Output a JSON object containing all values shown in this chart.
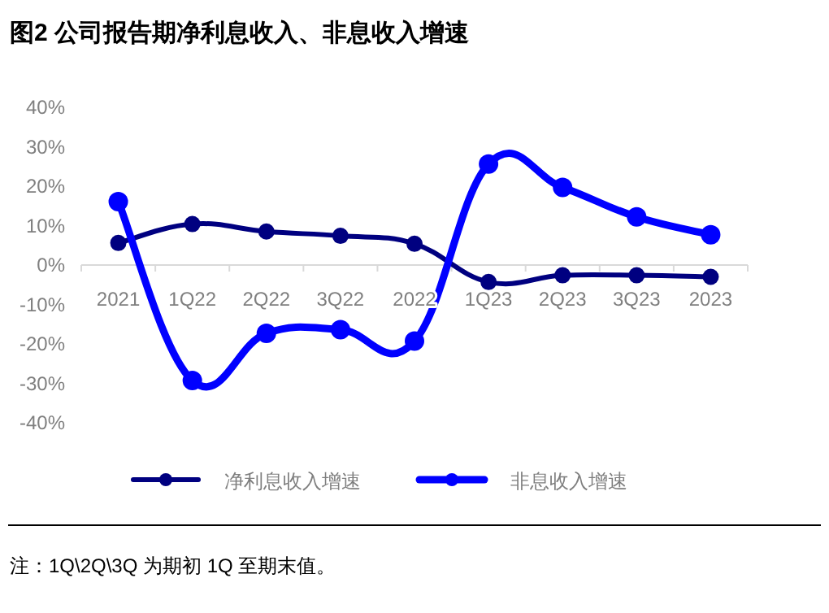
{
  "chart_data": {
    "type": "line",
    "title": "图2  公司报告期净利息收入、非息收入增速",
    "categories": [
      "2021",
      "1Q22",
      "2Q22",
      "3Q22",
      "2022",
      "1Q23",
      "2Q23",
      "3Q23",
      "2023"
    ],
    "series": [
      {
        "name": "净利息收入增速",
        "color": "#000080",
        "values": [
          5.6,
          10.4,
          8.5,
          7.4,
          5.4,
          -4.3,
          -2.6,
          -2.6,
          -3.0
        ]
      },
      {
        "name": "非息收入增速",
        "color": "#0000ff",
        "values": [
          16.1,
          -29.3,
          -17.3,
          -16.4,
          -19.3,
          25.6,
          19.7,
          12.2,
          7.7
        ]
      }
    ],
    "ylim": [
      -40,
      40
    ],
    "yticks": [
      {
        "value": -40,
        "label": "-40%"
      },
      {
        "value": -30,
        "label": "-30%"
      },
      {
        "value": -20,
        "label": "-20%"
      },
      {
        "value": -10,
        "label": "-10%"
      },
      {
        "value": 0,
        "label": "0%"
      },
      {
        "value": 10,
        "label": "10%"
      },
      {
        "value": 20,
        "label": "20%"
      },
      {
        "value": 30,
        "label": "30%"
      },
      {
        "value": 40,
        "label": "40%"
      }
    ],
    "grid": false,
    "legend": "bottom",
    "marker": "circle",
    "line_style": "solid",
    "annotations": [
      "注：1Q\\2Q\\3Q 为期初 1Q 至期末值。"
    ]
  }
}
